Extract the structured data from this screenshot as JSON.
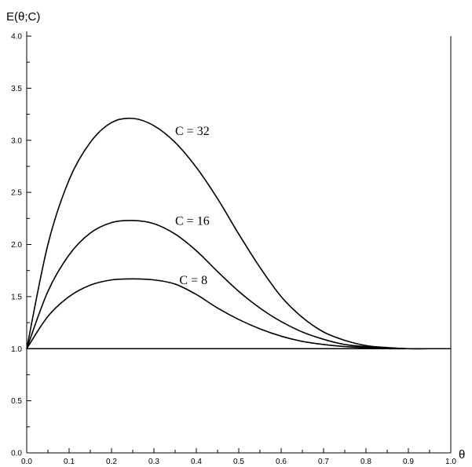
{
  "chart_data": {
    "type": "line",
    "title": "",
    "xlabel": "θ",
    "ylabel": "E(θ;C)",
    "xlim": [
      0.0,
      1.0
    ],
    "ylim": [
      0.0,
      4.0
    ],
    "grid": false,
    "x_ticks": [
      "0.0",
      "0.1",
      "0.2",
      "0.3",
      "0.4",
      "0.5",
      "0.6",
      "0.7",
      "0.8",
      "0.9",
      "1.0"
    ],
    "y_ticks": [
      "0.0",
      "0.5",
      "1.0",
      "1.5",
      "2.0",
      "2.5",
      "3.0",
      "3.5",
      "4.0"
    ],
    "x": [
      0.0,
      0.05,
      0.1,
      0.15,
      0.2,
      0.25,
      0.3,
      0.35,
      0.4,
      0.45,
      0.5,
      0.55,
      0.6,
      0.65,
      0.7,
      0.75,
      0.8,
      0.85,
      0.9,
      0.95,
      1.0
    ],
    "series": [
      {
        "name": "C = 32",
        "values": [
          1.0,
          2.0,
          2.62,
          2.98,
          3.17,
          3.21,
          3.14,
          2.98,
          2.74,
          2.44,
          2.1,
          1.78,
          1.5,
          1.3,
          1.16,
          1.08,
          1.03,
          1.01,
          1.0,
          1.0,
          1.0
        ]
      },
      {
        "name": "C = 16",
        "values": [
          1.0,
          1.55,
          1.9,
          2.11,
          2.21,
          2.23,
          2.2,
          2.1,
          1.94,
          1.74,
          1.55,
          1.39,
          1.26,
          1.16,
          1.09,
          1.04,
          1.02,
          1.01,
          1.0,
          1.0,
          1.0
        ]
      },
      {
        "name": "C = 8",
        "values": [
          1.0,
          1.31,
          1.5,
          1.61,
          1.66,
          1.67,
          1.66,
          1.62,
          1.52,
          1.39,
          1.28,
          1.19,
          1.12,
          1.07,
          1.04,
          1.02,
          1.01,
          1.0,
          1.0,
          1.0,
          1.0
        ]
      },
      {
        "name": "",
        "values": [
          1.0,
          1.0,
          1.0,
          1.0,
          1.0,
          1.0,
          1.0,
          1.0,
          1.0,
          1.0,
          1.0,
          1.0,
          1.0,
          1.0,
          1.0,
          1.0,
          1.0,
          1.0,
          1.0,
          1.0,
          1.0
        ]
      }
    ],
    "labels": [
      {
        "text": "C = 32",
        "x": 0.35,
        "y": 3.05
      },
      {
        "text": "C = 16",
        "x": 0.35,
        "y": 2.19
      },
      {
        "text": "C = 8",
        "x": 0.36,
        "y": 1.62
      }
    ]
  }
}
